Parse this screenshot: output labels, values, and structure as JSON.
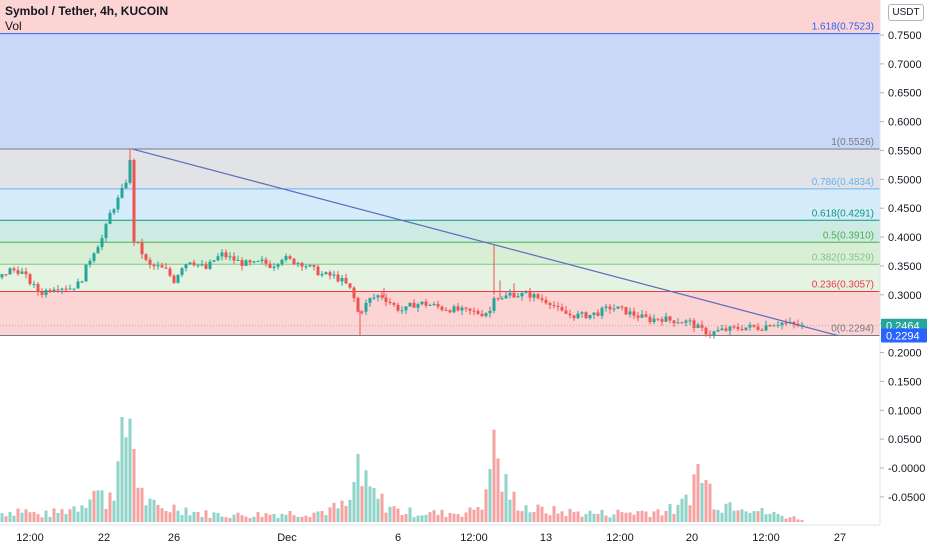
{
  "header": {
    "title": "Symbol / Tether, 4h, KUCOIN",
    "vol_label": "Vol"
  },
  "unit_label": "USDT",
  "colors": {
    "up": "#26a69a",
    "down": "#ef5350",
    "trendline": "#5b6bbf"
  },
  "chart_data": {
    "type": "candlestick",
    "x_ticks": [
      "12:00",
      "22",
      "26",
      "Dec",
      "6",
      "12:00",
      "13",
      "12:00",
      "20",
      "12:00",
      "27"
    ],
    "y_ticks": [
      "0.7500",
      "0.7000",
      "0.6500",
      "0.6000",
      "0.5500",
      "0.5000",
      "0.4500",
      "0.4000",
      "0.3500",
      "0.3000",
      "0.2500",
      "0.2000",
      "0.1500",
      "0.1000",
      "0.0500",
      "-0.0000",
      "-0.0500"
    ],
    "y_range": [
      -0.094,
      0.81
    ],
    "price_labels": [
      {
        "text": "0.2464",
        "color": "#26a69a",
        "value": 0.2464
      },
      {
        "text": "0.2294",
        "color": "#2962ff",
        "value": 0.2294
      }
    ],
    "fib_levels": [
      {
        "label": "1.618(0.7523)",
        "value": 0.7523,
        "color": "#2962ff",
        "zone": "#c9d8f7"
      },
      {
        "label": "1(0.5526)",
        "value": 0.5526,
        "color": "#787b86",
        "zone": "#e2e3e6"
      },
      {
        "label": "0.786(0.4834)",
        "value": 0.4834,
        "color": "#64b5f6",
        "zone": "#d6ecfa"
      },
      {
        "label": "0.618(0.4291)",
        "value": 0.4291,
        "color": "#089981",
        "zone": "#cdeae3"
      },
      {
        "label": "0.5(0.3910)",
        "value": 0.391,
        "color": "#4caf50",
        "zone": "#d8efd6"
      },
      {
        "label": "0.382(0.3529)",
        "value": 0.3529,
        "color": "#81c784",
        "zone": "#e4f3e2"
      },
      {
        "label": "0.236(0.3057)",
        "value": 0.3057,
        "color": "#f23645",
        "zone": "#fbd4d3"
      },
      {
        "label": "0(0.2294)",
        "value": 0.2294,
        "color": "#787b86",
        "zone": null
      }
    ],
    "top_zone_color": "#fbd4d3",
    "trendline": {
      "from": [
        132,
        0.5526
      ],
      "to": [
        838,
        0.2294
      ]
    },
    "price_anchors": [
      [
        0,
        0.33
      ],
      [
        10,
        0.343
      ],
      [
        20,
        0.342
      ],
      [
        30,
        0.322
      ],
      [
        40,
        0.302
      ],
      [
        55,
        0.315
      ],
      [
        70,
        0.312
      ],
      [
        80,
        0.32
      ],
      [
        88,
        0.355
      ],
      [
        95,
        0.38
      ],
      [
        103,
        0.4
      ],
      [
        110,
        0.44
      ],
      [
        118,
        0.465
      ],
      [
        125,
        0.49
      ],
      [
        130,
        0.53
      ],
      [
        134,
        0.395
      ],
      [
        140,
        0.38
      ],
      [
        148,
        0.35
      ],
      [
        158,
        0.348
      ],
      [
        166,
        0.342
      ],
      [
        174,
        0.325
      ],
      [
        182,
        0.35
      ],
      [
        190,
        0.36
      ],
      [
        198,
        0.352
      ],
      [
        206,
        0.345
      ],
      [
        214,
        0.36
      ],
      [
        222,
        0.37
      ],
      [
        232,
        0.362
      ],
      [
        242,
        0.355
      ],
      [
        252,
        0.352
      ],
      [
        262,
        0.357
      ],
      [
        272,
        0.35
      ],
      [
        282,
        0.365
      ],
      [
        292,
        0.358
      ],
      [
        302,
        0.355
      ],
      [
        312,
        0.345
      ],
      [
        322,
        0.335
      ],
      [
        334,
        0.332
      ],
      [
        344,
        0.322
      ],
      [
        352,
        0.305
      ],
      [
        358,
        0.27
      ],
      [
        362,
        0.275
      ],
      [
        370,
        0.292
      ],
      [
        380,
        0.3
      ],
      [
        388,
        0.29
      ],
      [
        396,
        0.278
      ],
      [
        404,
        0.272
      ],
      [
        412,
        0.283
      ],
      [
        422,
        0.285
      ],
      [
        432,
        0.282
      ],
      [
        442,
        0.277
      ],
      [
        452,
        0.275
      ],
      [
        462,
        0.272
      ],
      [
        472,
        0.27
      ],
      [
        482,
        0.268
      ],
      [
        490,
        0.272
      ],
      [
        494,
        0.3
      ],
      [
        502,
        0.292
      ],
      [
        510,
        0.302
      ],
      [
        520,
        0.3
      ],
      [
        530,
        0.3
      ],
      [
        540,
        0.293
      ],
      [
        550,
        0.288
      ],
      [
        560,
        0.27
      ],
      [
        570,
        0.265
      ],
      [
        580,
        0.264
      ],
      [
        590,
        0.265
      ],
      [
        600,
        0.27
      ],
      [
        610,
        0.278
      ],
      [
        620,
        0.275
      ],
      [
        630,
        0.268
      ],
      [
        640,
        0.262
      ],
      [
        650,
        0.257
      ],
      [
        660,
        0.26
      ],
      [
        670,
        0.256
      ],
      [
        680,
        0.255
      ],
      [
        690,
        0.252
      ],
      [
        700,
        0.24
      ],
      [
        710,
        0.233
      ],
      [
        720,
        0.238
      ],
      [
        730,
        0.24
      ],
      [
        740,
        0.243
      ],
      [
        750,
        0.244
      ],
      [
        760,
        0.243
      ],
      [
        770,
        0.25
      ],
      [
        780,
        0.252
      ],
      [
        790,
        0.249
      ],
      [
        800,
        0.246
      ]
    ],
    "wick_spikes": [
      [
        130,
        0.5526
      ],
      [
        360,
        0.2294
      ],
      [
        494,
        0.388
      ],
      [
        500,
        0.325
      ],
      [
        514,
        0.32
      ],
      [
        126,
        0.496
      ],
      [
        384,
        0.312
      ]
    ],
    "volume_anchors": [
      [
        0,
        0.01
      ],
      [
        20,
        0.015
      ],
      [
        40,
        0.008
      ],
      [
        60,
        0.012
      ],
      [
        80,
        0.02
      ],
      [
        92,
        0.04
      ],
      [
        106,
        0.025
      ],
      [
        118,
        0.06
      ],
      [
        130,
        0.13
      ],
      [
        133,
        0.1
      ],
      [
        140,
        0.035
      ],
      [
        150,
        0.02
      ],
      [
        160,
        0.015
      ],
      [
        180,
        0.018
      ],
      [
        200,
        0.01
      ],
      [
        240,
        0.008
      ],
      [
        280,
        0.01
      ],
      [
        320,
        0.012
      ],
      [
        350,
        0.02
      ],
      [
        358,
        0.07
      ],
      [
        362,
        0.045
      ],
      [
        380,
        0.025
      ],
      [
        400,
        0.012
      ],
      [
        440,
        0.01
      ],
      [
        470,
        0.012
      ],
      [
        488,
        0.03
      ],
      [
        492,
        0.09
      ],
      [
        494,
        0.13
      ],
      [
        498,
        0.06
      ],
      [
        510,
        0.03
      ],
      [
        530,
        0.015
      ],
      [
        560,
        0.012
      ],
      [
        600,
        0.01
      ],
      [
        640,
        0.012
      ],
      [
        680,
        0.015
      ],
      [
        700,
        0.065
      ],
      [
        706,
        0.045
      ],
      [
        720,
        0.02
      ],
      [
        740,
        0.025
      ],
      [
        760,
        0.012
      ],
      [
        780,
        0.008
      ],
      [
        800,
        0.004
      ]
    ]
  }
}
